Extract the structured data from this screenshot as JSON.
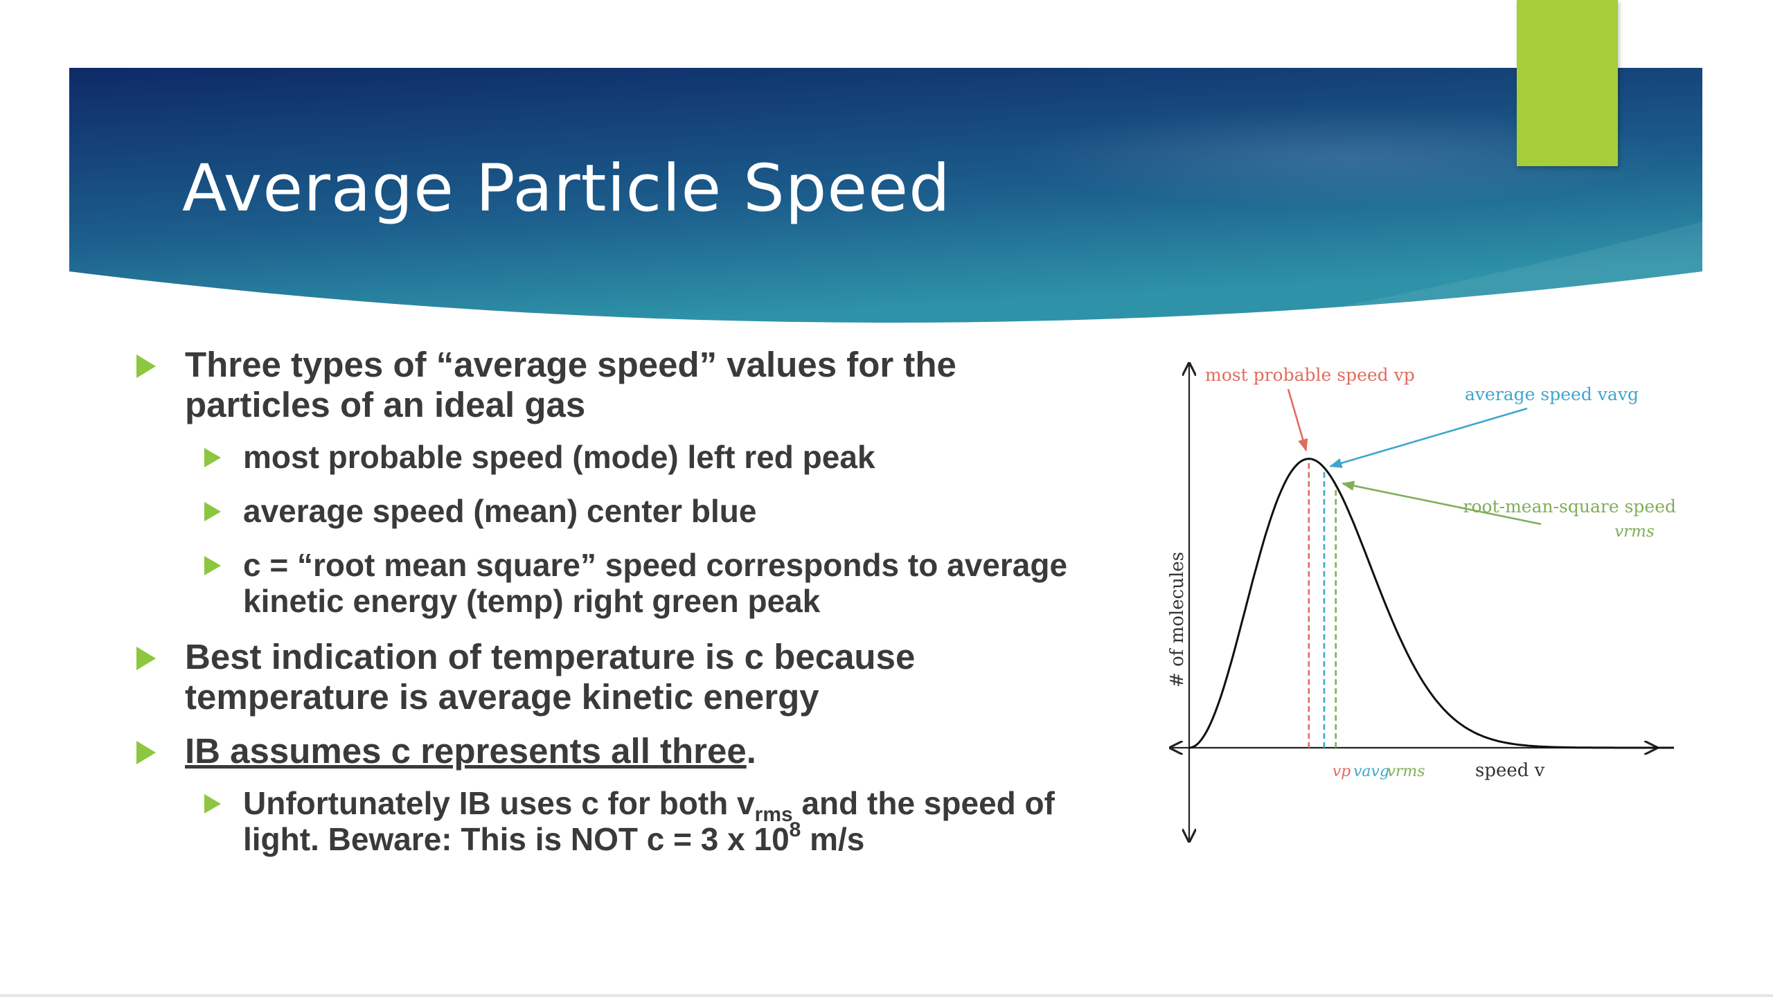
{
  "slide": {
    "title": "Average Particle Speed",
    "colors": {
      "banner_dark": "#0e2a66",
      "banner_teal": "#2e93a8",
      "accent_green": "#a6ce39",
      "bullet_green": "#8dc63f"
    },
    "bullets": [
      {
        "text": "Three types of “average speed” values for the particles of an ideal gas",
        "sub": [
          {
            "text": "most probable speed (mode) left red peak"
          },
          {
            "text": "average speed (mean) center blue"
          },
          {
            "text": "c = “root mean square” speed corresponds to average kinetic energy  (temp) right green peak"
          }
        ]
      },
      {
        "text": "Best indication of temperature is c because temperature is average kinetic energy"
      },
      {
        "text_underlined": "IB assumes c represents all three",
        "text_tail": ".",
        "sub": [
          {
            "part1": "Unfortunately IB uses c for both v",
            "sub_rms": "rms",
            "part2": " and the speed of light. Beware: This is NOT c = 3 x 10",
            "sup_8": "8",
            "part3": " m/s"
          }
        ]
      }
    ]
  },
  "chart_data": {
    "type": "line",
    "title": "",
    "xlabel": "speed v",
    "ylabel": "# of molecules",
    "grid": false,
    "series": [
      {
        "x": [
          0,
          0.5,
          1,
          1.5,
          2,
          2.5,
          3,
          3.5,
          4
        ],
        "values": [
          0,
          0.32,
          0.83,
          0.93,
          0.49,
          0.17,
          0.04,
          0.006,
          0.0006
        ]
      }
    ],
    "markers": [
      {
        "x": 1.0,
        "color": "#e06c5d",
        "axis_label": "vp"
      },
      {
        "x": 1.128,
        "color": "#3ea6cc",
        "axis_label": "vavg"
      },
      {
        "x": 1.225,
        "color": "#7fae58",
        "axis_label": "vrms"
      }
    ],
    "annotations": [
      {
        "text": "most probable speed vp",
        "color": "#e06c5d"
      },
      {
        "text": "average speed vavg",
        "color": "#3ea6cc"
      },
      {
        "text": "root-mean-square speed",
        "text2": "vrms",
        "color": "#7fae58"
      }
    ],
    "xlim": [
      0,
      4.05
    ],
    "ylim": [
      0,
      1.27
    ]
  }
}
